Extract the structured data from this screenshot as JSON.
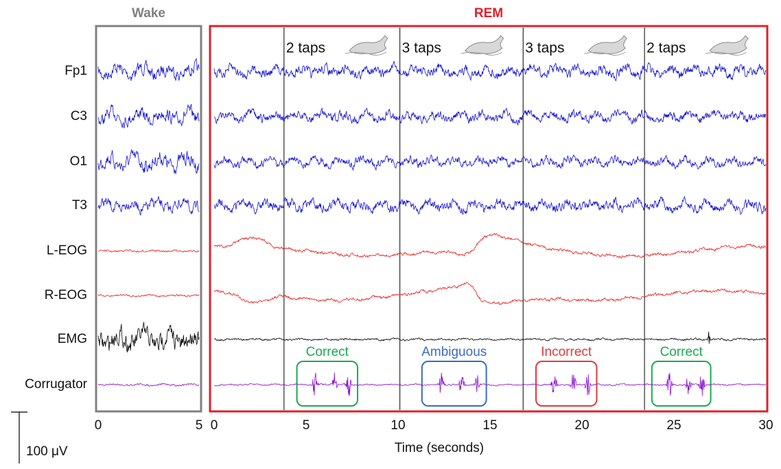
{
  "panels": [
    {
      "title": "Wake",
      "color": "#808080",
      "xlim": [
        0,
        5
      ],
      "xticks": [
        0,
        5
      ]
    },
    {
      "title": "REM",
      "color": "#e0202a",
      "xlim": [
        0,
        30
      ],
      "xticks": [
        0,
        5,
        10,
        15,
        20,
        25,
        30
      ]
    }
  ],
  "channels": [
    {
      "label": "Fp1",
      "color": "#1010d0"
    },
    {
      "label": "C3",
      "color": "#1010d0"
    },
    {
      "label": "O1",
      "color": "#1010d0"
    },
    {
      "label": "T3",
      "color": "#1010d0"
    },
    {
      "label": "L-EOG",
      "color": "#e82020"
    },
    {
      "label": "R-EOG",
      "color": "#e82020"
    },
    {
      "label": "EMG",
      "color": "#000000"
    },
    {
      "label": "Corrugator",
      "color": "#8a10d0"
    }
  ],
  "events": [
    {
      "time": 3.8,
      "label": "2 taps"
    },
    {
      "time": 10.1,
      "label": "3 taps"
    },
    {
      "time": 16.8,
      "label": "3 taps"
    },
    {
      "time": 23.4,
      "label": "2 taps"
    }
  ],
  "outcomes": [
    {
      "label": "Correct",
      "color": "#1aaa50",
      "start": 4.5,
      "end": 7.8
    },
    {
      "label": "Ambiguous",
      "color": "#3a6cc0",
      "start": 11.3,
      "end": 14.8
    },
    {
      "label": "Incorrect",
      "color": "#e03a3a",
      "start": 17.5,
      "end": 20.8
    },
    {
      "label": "Correct",
      "color": "#1aaa50",
      "start": 23.8,
      "end": 27.0
    }
  ],
  "xlabel": "Time (seconds)",
  "scale_bar": "100 μV"
}
